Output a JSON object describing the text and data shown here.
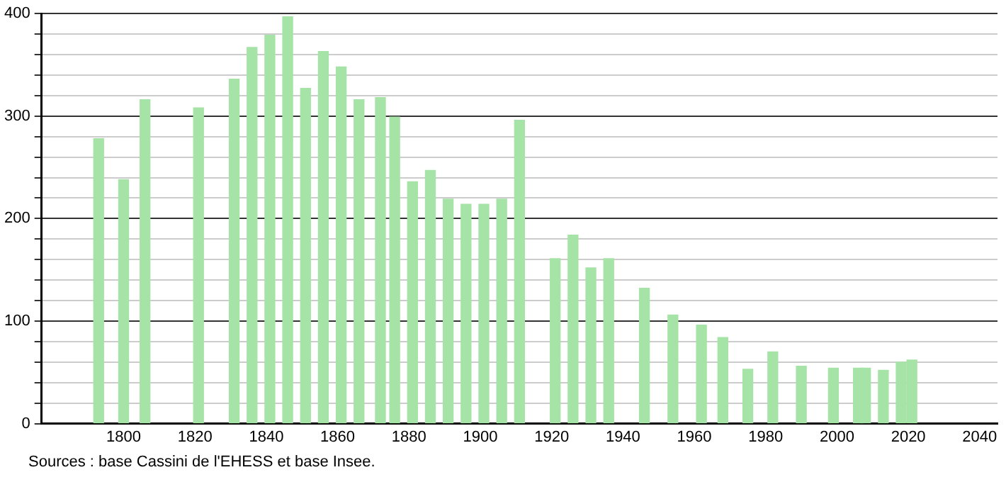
{
  "chart_data": {
    "type": "bar",
    "x": [
      1793,
      1800,
      1806,
      1821,
      1831,
      1836,
      1841,
      1846,
      1851,
      1856,
      1861,
      1866,
      1872,
      1876,
      1881,
      1886,
      1891,
      1896,
      1901,
      1906,
      1911,
      1921,
      1926,
      1931,
      1936,
      1946,
      1954,
      1962,
      1968,
      1975,
      1982,
      1990,
      1999,
      2006,
      2008,
      2013,
      2018,
      2021
    ],
    "values": [
      278,
      238,
      316,
      308,
      336,
      367,
      379,
      397,
      327,
      363,
      348,
      316,
      318,
      299,
      236,
      247,
      219,
      214,
      214,
      219,
      296,
      161,
      184,
      152,
      161,
      132,
      106,
      96,
      84,
      53,
      70,
      56,
      54,
      54,
      54,
      52,
      60,
      62
    ],
    "color": "#a6e3a6",
    "xlim": [
      1777,
      2045
    ],
    "xticks": [
      1800,
      1820,
      1840,
      1860,
      1880,
      1900,
      1920,
      1940,
      1960,
      1980,
      2000,
      2020,
      2040
    ],
    "ylim": [
      0,
      400
    ],
    "yticks": [
      0,
      {
        "value": 20,
        "label": null
      },
      {
        "value": 40,
        "label": null
      },
      {
        "value": 60,
        "label": null
      },
      {
        "value": 80,
        "label": null
      },
      100,
      {
        "value": 120,
        "label": null
      },
      {
        "value": 140,
        "label": null
      },
      {
        "value": 160,
        "label": null
      },
      {
        "value": 180,
        "label": null
      },
      200,
      {
        "value": 220,
        "label": null
      },
      {
        "value": 240,
        "label": null
      },
      {
        "value": 260,
        "label": null
      },
      {
        "value": 280,
        "label": null
      },
      300,
      {
        "value": 320,
        "label": null
      },
      {
        "value": 340,
        "label": null
      },
      {
        "value": 360,
        "label": null
      },
      {
        "value": 380,
        "label": null
      },
      400
    ],
    "grid": "y",
    "annotations": [
      "Sources : base Cassini de l'EHESS et base Insee."
    ]
  }
}
